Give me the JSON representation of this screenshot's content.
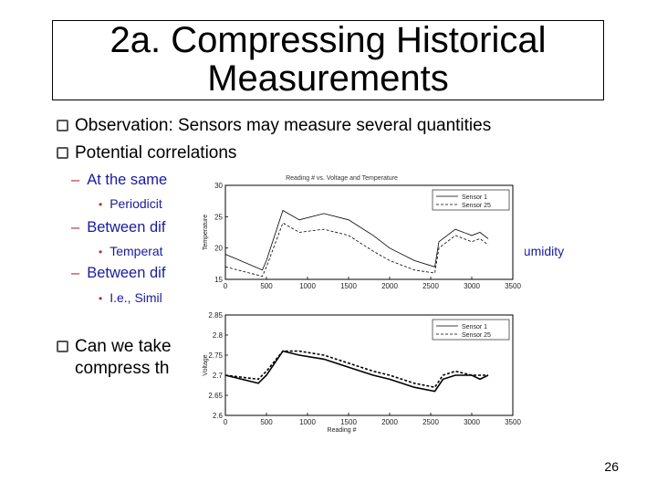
{
  "slide": {
    "title_line1": "2a. Compressing Historical",
    "title_line2": "Measurements",
    "bullet1": "Observation: Sensors may measure several quantities",
    "bullet2": "Potential correlations",
    "sub1": "At the same",
    "subsub1": "Periodicit",
    "sub2": "Between dif",
    "subsub2": "Temperat",
    "subsub2_right": "humidity",
    "sub3": "Between dif",
    "subsub3": "I.e., Simil",
    "bullet3_line1": "Can we take",
    "bullet3_line2": "compress th",
    "page_number": "26"
  },
  "chart_data": [
    {
      "type": "line",
      "title": "Reading # vs. Voltage and Temperature",
      "ylabel": "Temperature",
      "xlabel": "",
      "xlim": [
        0,
        3500
      ],
      "ylim": [
        15,
        30
      ],
      "xticks": [
        0,
        500,
        1000,
        1500,
        2000,
        2500,
        3000,
        3500
      ],
      "yticks": [
        15,
        20,
        25,
        30
      ],
      "legend_position": "top-right",
      "series": [
        {
          "name": "Sensor 1",
          "style": "solid",
          "x": [
            0,
            450,
            500,
            700,
            900,
            1200,
            1500,
            1800,
            2000,
            2300,
            2550,
            2600,
            2800,
            3000,
            3100,
            3200
          ],
          "y": [
            19.0,
            16.5,
            18.0,
            26.0,
            24.5,
            25.5,
            24.5,
            22.0,
            20.0,
            18.0,
            17.0,
            21.0,
            23.0,
            22.0,
            22.5,
            21.5
          ]
        },
        {
          "name": "Sensor 25",
          "style": "dashed",
          "x": [
            0,
            450,
            500,
            700,
            900,
            1200,
            1500,
            1800,
            2000,
            2300,
            2550,
            2600,
            2800,
            3000,
            3100,
            3200
          ],
          "y": [
            17.0,
            15.5,
            17.0,
            24.0,
            22.5,
            23.0,
            22.0,
            19.5,
            18.0,
            16.5,
            16.0,
            20.0,
            22.0,
            21.0,
            21.5,
            20.5
          ]
        }
      ]
    },
    {
      "type": "line",
      "title": "",
      "ylabel": "Voltage",
      "xlabel": "Reading #",
      "xlim": [
        0,
        3500
      ],
      "ylim": [
        2.6,
        2.85
      ],
      "xticks": [
        0,
        500,
        1000,
        1500,
        2000,
        2500,
        3000,
        3500
      ],
      "yticks": [
        2.6,
        2.65,
        2.7,
        2.75,
        2.8,
        2.85
      ],
      "legend_position": "top-right",
      "series": [
        {
          "name": "Sensor 1",
          "style": "solid",
          "x": [
            0,
            400,
            500,
            700,
            900,
            1200,
            1500,
            1800,
            2000,
            2300,
            2550,
            2650,
            2800,
            3000,
            3100,
            3200
          ],
          "y": [
            2.7,
            2.68,
            2.7,
            2.76,
            2.75,
            2.74,
            2.72,
            2.7,
            2.69,
            2.67,
            2.66,
            2.69,
            2.7,
            2.7,
            2.69,
            2.7
          ]
        },
        {
          "name": "Sensor 25",
          "style": "dashed",
          "x": [
            0,
            400,
            500,
            700,
            900,
            1200,
            1500,
            1800,
            2000,
            2300,
            2550,
            2650,
            2800,
            3000,
            3100,
            3200
          ],
          "y": [
            2.7,
            2.69,
            2.71,
            2.76,
            2.76,
            2.75,
            2.73,
            2.71,
            2.7,
            2.68,
            2.67,
            2.7,
            2.71,
            2.7,
            2.7,
            2.7
          ]
        }
      ]
    }
  ]
}
